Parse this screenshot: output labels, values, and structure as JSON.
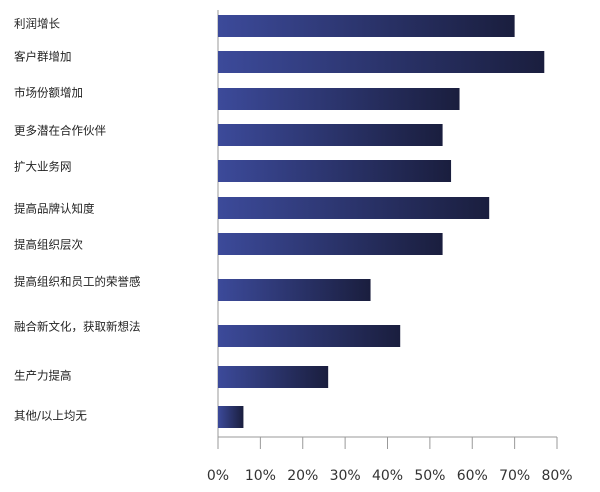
{
  "chart_data": {
    "type": "bar",
    "orientation": "horizontal",
    "categories": [
      "利润增长",
      "客户群增加",
      "市场份额增加",
      "更多潜在合作伙伴",
      "扩大业务网",
      "提高品牌认知度",
      "提高组织层次",
      "提高组织和员工的荣誉感",
      "融合新文化，获取新想法",
      "生产力提高",
      "其他/以上均无"
    ],
    "values": [
      70,
      77,
      57,
      53,
      55,
      64,
      53,
      36,
      43,
      26,
      6
    ],
    "xlim": [
      0,
      80
    ],
    "x_ticks": [
      "0%",
      "10%",
      "20%",
      "30%",
      "40%",
      "50%",
      "60%",
      "70%",
      "80%"
    ],
    "grid": false,
    "colors": {
      "bar_start": "#3c4a9a",
      "bar_end": "#1a1e3e",
      "axis": "#999999"
    }
  }
}
